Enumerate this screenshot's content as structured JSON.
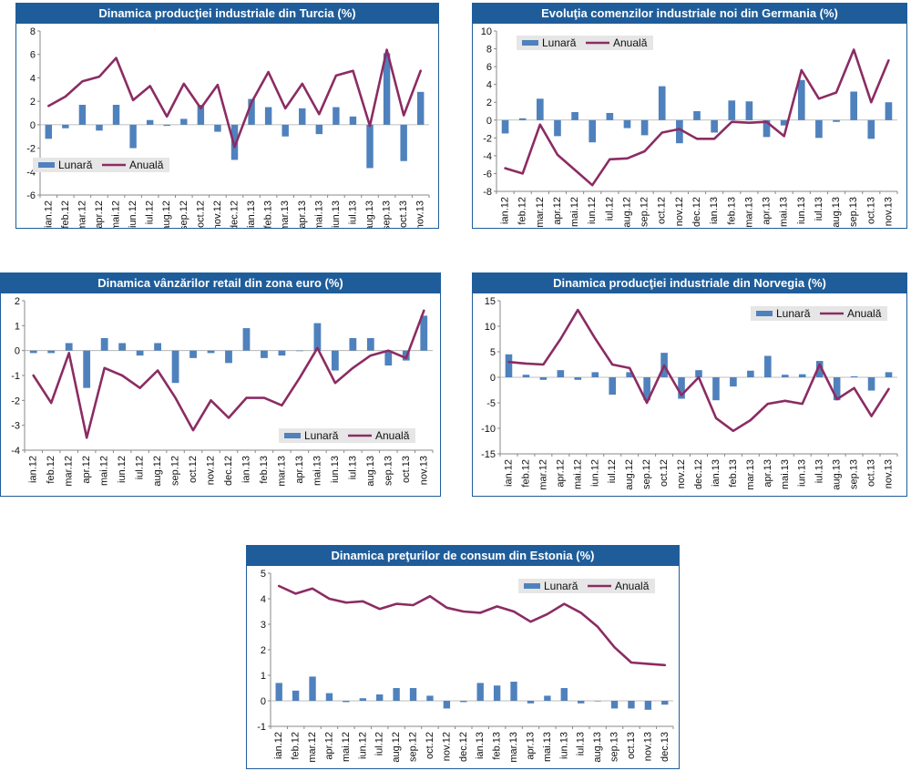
{
  "colors": {
    "bar": "#4f81bd",
    "line": "#8b2c63",
    "title_bg": "#1f5d9a",
    "legend_bg": "#e6e6e6",
    "axis": "#888888"
  },
  "chart_data": [
    {
      "type": "bar",
      "title": "Dinamica producţiei industriale din Turcia (%)",
      "categories": [
        "ian.12",
        "feb.12",
        "mar.12",
        "apr.12",
        "mai.12",
        "iun.12",
        "iul.12",
        "aug.12",
        "sep.12",
        "oct.12",
        "nov.12",
        "dec.12",
        "ian.13",
        "feb.13",
        "mar.13",
        "apr.13",
        "mai.13",
        "iun.13",
        "iul.13",
        "aug.13",
        "sep.13",
        "oct.13",
        "nov.13"
      ],
      "ylim": [
        -6,
        8
      ],
      "yticks": [
        -6,
        -4,
        -2,
        0,
        2,
        4,
        6,
        8
      ],
      "legend": [
        "Lunară",
        "Anuală"
      ],
      "series": [
        {
          "name": "Lunară",
          "type": "bar",
          "values": [
            -1.2,
            -0.3,
            1.7,
            -0.5,
            1.7,
            -2.0,
            0.4,
            -0.1,
            0.5,
            1.7,
            -0.6,
            -3.0,
            2.2,
            1.5,
            -1.0,
            1.4,
            -0.8,
            1.5,
            0.7,
            -3.7,
            6.1,
            -3.1,
            2.8
          ]
        },
        {
          "name": "Anuală",
          "type": "line",
          "values": [
            1.6,
            2.4,
            3.7,
            4.1,
            5.7,
            2.1,
            3.3,
            0.7,
            3.5,
            1.4,
            3.4,
            -1.9,
            1.9,
            4.5,
            1.4,
            3.5,
            0.9,
            4.2,
            4.6,
            -0.1,
            6.4,
            0.8,
            4.6
          ]
        }
      ]
    },
    {
      "type": "bar",
      "title": "Evoluţia comenzilor industriale noi din Germania (%)",
      "categories": [
        "ian.12",
        "feb.12",
        "mar.12",
        "apr.12",
        "mai.12",
        "iun.12",
        "iul.12",
        "aug.12",
        "sep.12",
        "oct.12",
        "nov.12",
        "dec.12",
        "ian.13",
        "feb.13",
        "mar.13",
        "apr.13",
        "mai.13",
        "iun.13",
        "iul.13",
        "aug.13",
        "sep.13",
        "oct.13",
        "nov.13"
      ],
      "ylim": [
        -8,
        10
      ],
      "yticks": [
        -8,
        -6,
        -4,
        -2,
        0,
        2,
        4,
        6,
        8,
        10
      ],
      "legend": [
        "Lunară",
        "Anuală"
      ],
      "series": [
        {
          "name": "Lunară",
          "type": "bar",
          "values": [
            -1.5,
            0.2,
            2.4,
            -1.8,
            0.9,
            -2.5,
            0.8,
            -0.9,
            -1.7,
            3.8,
            -2.6,
            1.0,
            -1.4,
            2.2,
            2.1,
            -1.9,
            -0.6,
            4.5,
            -2.0,
            -0.2,
            3.2,
            -2.1,
            2.0
          ]
        },
        {
          "name": "Anuală",
          "type": "line",
          "values": [
            -5.4,
            -6.0,
            -0.5,
            -3.9,
            -5.6,
            -7.3,
            -4.4,
            -4.3,
            -3.5,
            -1.4,
            -1.0,
            -2.1,
            -2.1,
            -0.2,
            -0.3,
            -0.2,
            -1.8,
            5.6,
            2.4,
            3.1,
            7.9,
            2.0,
            6.7
          ]
        }
      ]
    },
    {
      "type": "bar",
      "title": "Dinamica vânzărilor retail din zona euro (%)",
      "categories": [
        "ian.12",
        "feb.12",
        "mar.12",
        "apr.12",
        "mai.12",
        "iun.12",
        "iul.12",
        "aug.12",
        "sep.12",
        "oct.12",
        "nov.12",
        "dec.12",
        "ian.13",
        "feb.13",
        "mar.13",
        "apr.13",
        "mai.13",
        "iun.13",
        "iul.13",
        "aug.13",
        "sep.13",
        "oct.13",
        "nov.13"
      ],
      "ylim": [
        -4,
        2
      ],
      "yticks": [
        -4,
        -3,
        -2,
        -1,
        0,
        1,
        2
      ],
      "legend": [
        "Lunară",
        "Anuală"
      ],
      "series": [
        {
          "name": "Lunară",
          "type": "bar",
          "values": [
            -0.1,
            -0.1,
            0.3,
            -1.5,
            0.5,
            0.3,
            -0.2,
            0.3,
            -1.3,
            -0.3,
            -0.1,
            -0.5,
            0.9,
            -0.3,
            -0.2,
            0.0,
            1.1,
            -0.8,
            0.5,
            0.5,
            -0.6,
            -0.4,
            1.4
          ]
        },
        {
          "name": "Anuală",
          "type": "line",
          "values": [
            -1.0,
            -2.1,
            -0.1,
            -3.5,
            -0.7,
            -1.0,
            -1.5,
            -0.8,
            -1.9,
            -3.2,
            -2.0,
            -2.7,
            -1.9,
            -1.9,
            -2.2,
            -1.1,
            0.1,
            -1.3,
            -0.7,
            -0.2,
            0.0,
            -0.3,
            1.6
          ]
        }
      ]
    },
    {
      "type": "bar",
      "title": "Dinamica producţiei industriale din Norvegia (%)",
      "categories": [
        "ian.12",
        "feb.12",
        "mar.12",
        "apr.12",
        "mai.12",
        "iun.12",
        "iul.12",
        "aug.12",
        "sep.12",
        "oct.12",
        "nov.12",
        "dec.12",
        "ian.13",
        "feb.13",
        "mar.13",
        "apr.13",
        "mai.13",
        "iun.13",
        "iul.13",
        "aug.13",
        "sep.13",
        "oct.13",
        "nov.13"
      ],
      "ylim": [
        -15,
        15
      ],
      "yticks": [
        -15,
        -10,
        -5,
        0,
        5,
        10,
        15
      ],
      "legend": [
        "Lunară",
        "Anuală"
      ],
      "series": [
        {
          "name": "Lunară",
          "type": "bar",
          "values": [
            4.5,
            0.5,
            -0.5,
            1.4,
            -0.5,
            1.0,
            -3.4,
            1.0,
            -4.5,
            4.8,
            -4.2,
            1.4,
            -4.5,
            -1.8,
            1.3,
            4.2,
            0.5,
            0.6,
            3.2,
            -4.5,
            0.2,
            -2.6,
            1.0
          ]
        },
        {
          "name": "Anuală",
          "type": "line",
          "values": [
            3.0,
            2.7,
            2.5,
            7.5,
            13.2,
            7.6,
            2.5,
            1.8,
            -5.0,
            2.3,
            -3.5,
            0.0,
            -8.0,
            -10.5,
            -8.4,
            -5.2,
            -4.6,
            -5.2,
            2.5,
            -4.3,
            -2.1,
            -7.6,
            -2.3
          ]
        }
      ]
    },
    {
      "type": "bar",
      "title": "Dinamica preţurilor de consum din Estonia (%)",
      "categories": [
        "ian.12",
        "feb.12",
        "mar.12",
        "apr.12",
        "mai.12",
        "iun.12",
        "iul.12",
        "aug.12",
        "sep.12",
        "oct.12",
        "nov.12",
        "dec.12",
        "ian.13",
        "feb.13",
        "mar.13",
        "apr.13",
        "mai.13",
        "iun.13",
        "iul.13",
        "aug.13",
        "sep.13",
        "oct.13",
        "nov.13",
        "dec.13"
      ],
      "ylim": [
        -1,
        5
      ],
      "yticks": [
        -1,
        0,
        1,
        2,
        3,
        4,
        5
      ],
      "legend": [
        "Lunară",
        "Anuală"
      ],
      "series": [
        {
          "name": "Lunară",
          "type": "bar",
          "values": [
            0.7,
            0.4,
            0.95,
            0.3,
            -0.05,
            0.1,
            0.25,
            0.5,
            0.5,
            0.2,
            -0.3,
            -0.05,
            0.7,
            0.6,
            0.75,
            -0.1,
            0.2,
            0.5,
            -0.1,
            0.0,
            -0.3,
            -0.3,
            -0.35,
            -0.15
          ]
        },
        {
          "name": "Anuală",
          "type": "line",
          "values": [
            4.5,
            4.2,
            4.4,
            4.0,
            3.85,
            3.9,
            3.6,
            3.8,
            3.75,
            4.1,
            3.65,
            3.5,
            3.45,
            3.7,
            3.5,
            3.1,
            3.4,
            3.8,
            3.45,
            2.9,
            2.1,
            1.5,
            1.45,
            1.4
          ]
        }
      ]
    }
  ]
}
